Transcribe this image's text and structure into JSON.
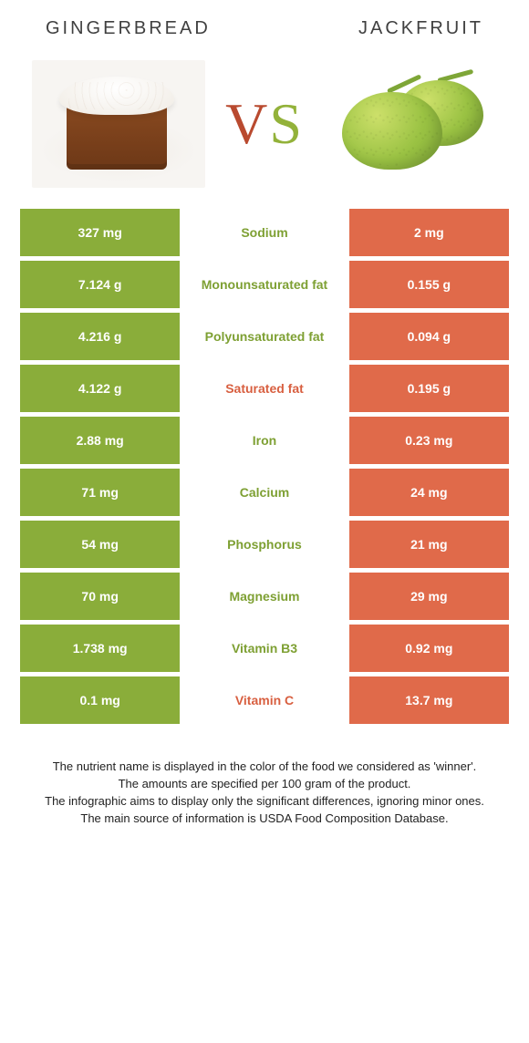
{
  "colors": {
    "green": "#8aad3a",
    "orange": "#e06a4a",
    "text_green": "#7ea033",
    "text_orange": "#d85f40"
  },
  "header": {
    "left_title": "GINGERBREAD",
    "right_title": "JACKFRUIT",
    "vs_v": "V",
    "vs_s": "S"
  },
  "rows": [
    {
      "left": "327 mg",
      "label": "Sodium",
      "right": "2 mg",
      "winner": "left"
    },
    {
      "left": "7.124 g",
      "label": "Monounsaturated fat",
      "right": "0.155 g",
      "winner": "left"
    },
    {
      "left": "4.216 g",
      "label": "Polyunsaturated fat",
      "right": "0.094 g",
      "winner": "left"
    },
    {
      "left": "4.122 g",
      "label": "Saturated fat",
      "right": "0.195 g",
      "winner": "right"
    },
    {
      "left": "2.88 mg",
      "label": "Iron",
      "right": "0.23 mg",
      "winner": "left"
    },
    {
      "left": "71 mg",
      "label": "Calcium",
      "right": "24 mg",
      "winner": "left"
    },
    {
      "left": "54 mg",
      "label": "Phosphorus",
      "right": "21 mg",
      "winner": "left"
    },
    {
      "left": "70 mg",
      "label": "Magnesium",
      "right": "29 mg",
      "winner": "left"
    },
    {
      "left": "1.738 mg",
      "label": "Vitamin B3",
      "right": "0.92 mg",
      "winner": "left"
    },
    {
      "left": "0.1 mg",
      "label": "Vitamin C",
      "right": "13.7 mg",
      "winner": "right"
    }
  ],
  "footnotes": [
    "The nutrient name is displayed in the color of the food we considered as 'winner'.",
    "The amounts are specified per 100 gram of the product.",
    "The infographic aims to display only the significant differences, ignoring minor ones.",
    "The main source of information is USDA Food Composition Database."
  ]
}
